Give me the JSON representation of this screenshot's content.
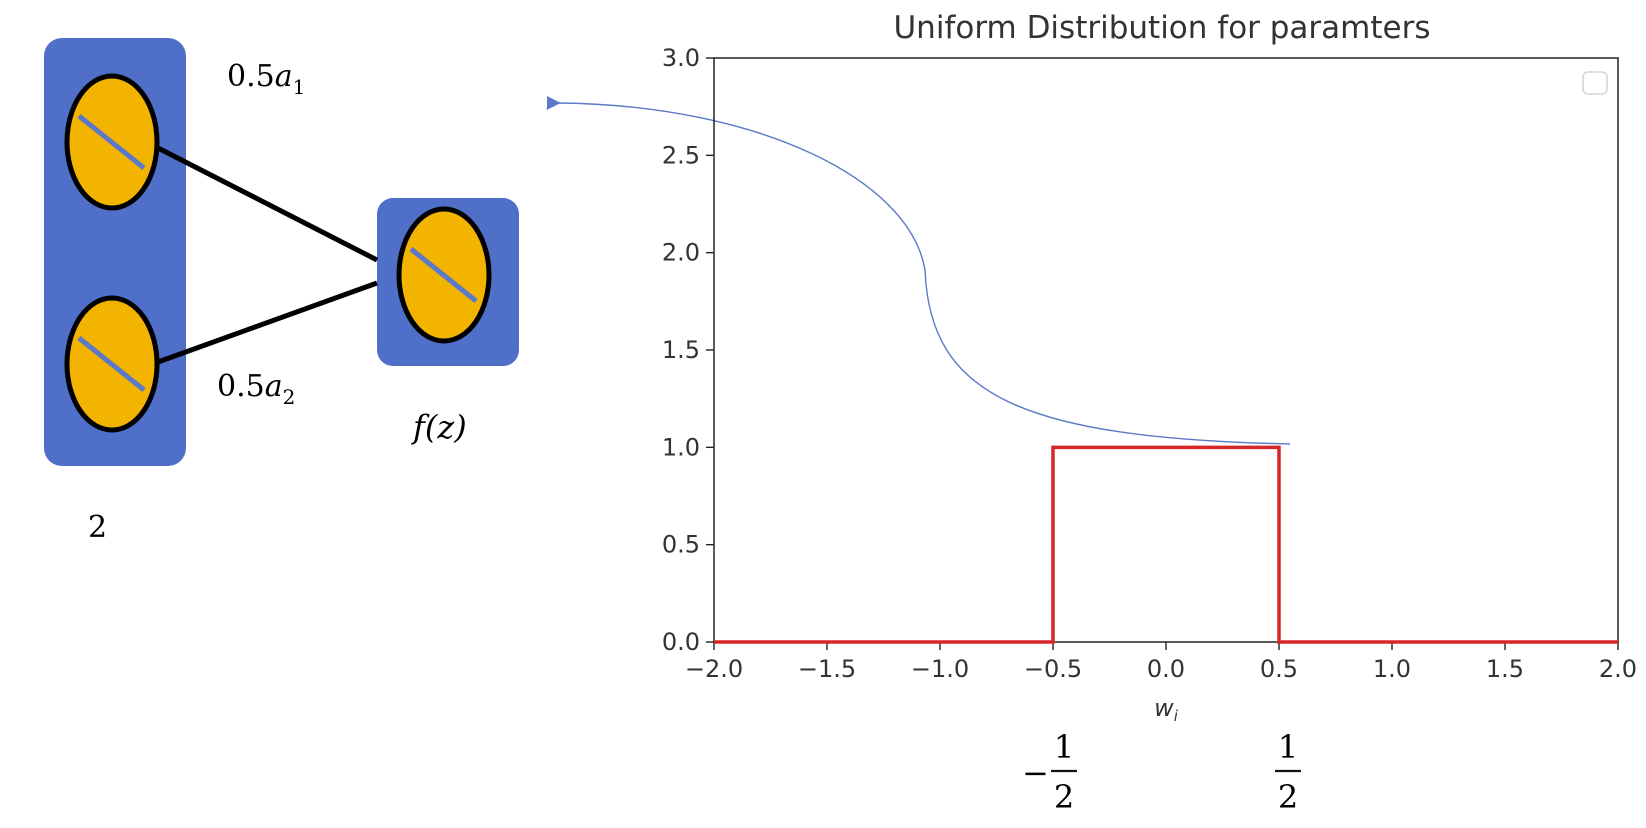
{
  "diagram": {
    "layer_size_label": "2",
    "weight_top_prefix": "0.5",
    "weight_top_var": "a",
    "weight_top_sub": "1",
    "weight_bottom_prefix": "0.5",
    "weight_bottom_var": "a",
    "weight_bottom_sub": "2",
    "output_label": "f(z)",
    "colors": {
      "layer_box": "#4f6fc9",
      "neuron_fill": "#f3b400",
      "neuron_stroke": "#000000",
      "neuron_slash": "#5b79c8",
      "edge": "#000000"
    }
  },
  "chart_data": {
    "type": "line",
    "title": "Uniform Distribution for paramters",
    "xlabel": "w_i",
    "ylabel": "",
    "xlim": [
      -2.0,
      2.0
    ],
    "ylim": [
      0.0,
      3.0
    ],
    "xticks": [
      "−2.0",
      "−1.5",
      "−1.0",
      "−0.5",
      "0.0",
      "0.5",
      "1.0",
      "1.5",
      "2.0"
    ],
    "xtick_values": [
      -2.0,
      -1.5,
      -1.0,
      -0.5,
      0.0,
      0.5,
      1.0,
      1.5,
      2.0
    ],
    "yticks": [
      "0.0",
      "0.5",
      "1.0",
      "1.5",
      "2.0",
      "2.5",
      "3.0"
    ],
    "ytick_values": [
      0.0,
      0.5,
      1.0,
      1.5,
      2.0,
      2.5,
      3.0
    ],
    "series": [
      {
        "x": [
          -2.0,
          -0.5,
          -0.5,
          0.5,
          0.5,
          2.0
        ],
        "y": [
          0.0,
          0.0,
          1.0,
          1.0,
          0.0,
          0.0
        ],
        "color": "#d62728"
      }
    ],
    "grid": false,
    "legend": "top-right, empty",
    "annotations": {
      "left_fraction_sign": "−",
      "left_fraction_num": "1",
      "left_fraction_den": "2",
      "right_fraction_num": "1",
      "right_fraction_den": "2",
      "arrow_color": "#5b79c8"
    }
  }
}
